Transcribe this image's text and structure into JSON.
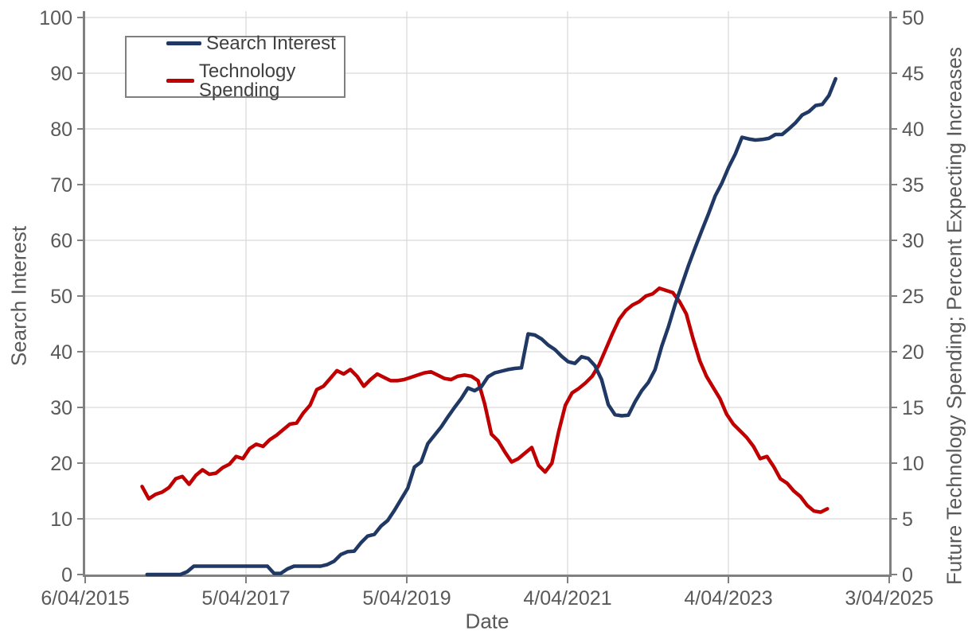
{
  "chart_data": {
    "type": "line",
    "title": "",
    "xlabel": "Date",
    "ylabel_left": "Search Interest",
    "ylabel_right": "Future Technology Spending; Percent Expecting Increases",
    "x_domain_years": [
      2015.42,
      2025.17
    ],
    "x_ticks": [
      "6/04/2015",
      "5/04/2017",
      "5/04/2019",
      "4/04/2021",
      "4/04/2023",
      "3/04/2025"
    ],
    "y_left": {
      "min": 0,
      "max": 100,
      "step": 10,
      "ticks": [
        "0",
        "10",
        "20",
        "30",
        "40",
        "50",
        "60",
        "70",
        "80",
        "90",
        "100"
      ]
    },
    "y_right": {
      "min": 0,
      "max": 50,
      "step": 5,
      "ticks": [
        "0",
        "5",
        "10",
        "15",
        "20",
        "25",
        "30",
        "35",
        "40",
        "45",
        "50"
      ]
    },
    "grid": true,
    "legend": {
      "position": "top-left",
      "entries": [
        {
          "label": "Search Interest",
          "color": "#1f3864"
        },
        {
          "label": "Technology Spending",
          "color": "#c00000"
        }
      ]
    },
    "series": [
      {
        "name": "Technology Spending",
        "axis": "right",
        "color": "#c00000",
        "x_start_year": 2016.11,
        "x_end_year": 2024.42,
        "sampling": "monthly",
        "values": [
          7.9,
          6.8,
          7.2,
          7.4,
          7.8,
          8.6,
          8.8,
          8.1,
          8.9,
          9.4,
          9,
          9.1,
          9.6,
          9.9,
          10.6,
          10.4,
          11.3,
          11.7,
          11.5,
          12.1,
          12.5,
          13,
          13.5,
          13.6,
          14.5,
          15.2,
          16.6,
          16.9,
          17.6,
          18.3,
          18,
          18.4,
          17.8,
          16.9,
          17.5,
          18,
          17.7,
          17.4,
          17.4,
          17.5,
          17.7,
          17.9,
          18.1,
          18.2,
          17.9,
          17.6,
          17.5,
          17.8,
          17.9,
          17.8,
          17.4,
          15.3,
          12.6,
          12,
          11,
          10.1,
          10.4,
          10.9,
          11.4,
          9.8,
          9.2,
          10,
          12.8,
          15.2,
          16.3,
          16.7,
          17.2,
          17.8,
          18.8,
          20.2,
          21.6,
          22.9,
          23.7,
          24.2,
          24.5,
          25,
          25.2,
          25.7,
          25.5,
          25.3,
          24.5,
          23.4,
          21.2,
          19.2,
          17.8,
          16.8,
          15.8,
          14.4,
          13.5,
          12.9,
          12.3,
          11.5,
          10.4,
          10.6,
          9.7,
          8.6,
          8.2,
          7.5,
          7,
          6.2,
          5.7,
          5.6,
          5.9
        ]
      },
      {
        "name": "Search Interest",
        "axis": "left",
        "color": "#1f3864",
        "x_start_year": 2016.17,
        "x_end_year": 2024.52,
        "sampling": "monthly",
        "values": [
          0,
          0,
          0,
          0,
          0,
          0,
          0.5,
          1.5,
          1.5,
          1.5,
          1.5,
          1.5,
          1.5,
          1.5,
          1.5,
          1.5,
          1.5,
          1.5,
          1.5,
          0.2,
          0.2,
          1,
          1.5,
          1.5,
          1.5,
          1.5,
          1.5,
          1.8,
          2.4,
          3.6,
          4.1,
          4.2,
          5.7,
          6.9,
          7.2,
          8.7,
          9.7,
          11.5,
          13.5,
          15.5,
          19.3,
          20.2,
          23.5,
          25,
          26.5,
          28.3,
          30,
          31.6,
          33.5,
          33,
          33.7,
          35.5,
          36.2,
          36.5,
          36.8,
          37,
          37.1,
          43.2,
          43,
          42.3,
          41.2,
          40.4,
          39.2,
          38.2,
          37.9,
          39.1,
          38.8,
          37.5,
          35,
          30.5,
          28.7,
          28.5,
          28.6,
          31,
          33,
          34.5,
          36.8,
          41,
          44.5,
          48.5,
          52,
          55.5,
          58.7,
          61.8,
          64.8,
          68,
          70.3,
          73.1,
          75.5,
          78.5,
          78.2,
          78,
          78.1,
          78.3,
          79,
          79,
          80,
          81.1,
          82.5,
          83.1,
          84.2,
          84.4,
          86,
          89
        ]
      }
    ],
    "style": {
      "grid_color": "#d9d9d9",
      "axis_color": "#808080",
      "tick_label_color": "#595959",
      "axis_title_color": "#595959",
      "legend_text_color": "#404040",
      "background": "#ffffff",
      "line_width": 4.5
    }
  }
}
